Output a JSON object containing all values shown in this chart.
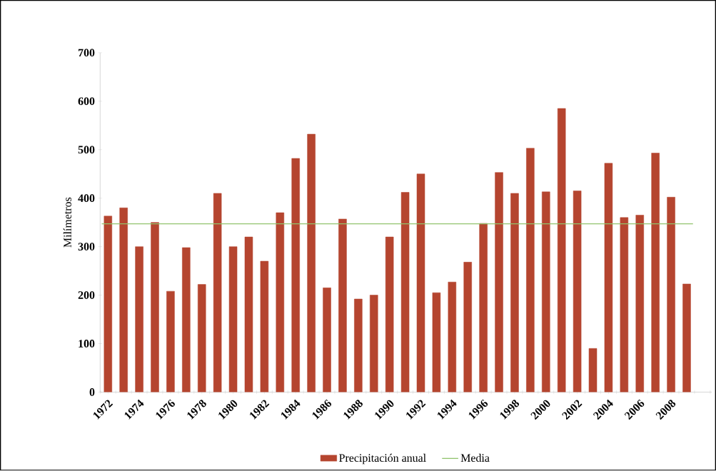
{
  "chart_data": {
    "type": "bar",
    "ylabel": "Milímetros",
    "categories": [
      "1972",
      null,
      "1974",
      null,
      "1976",
      null,
      "1978",
      null,
      "1980",
      null,
      "1982",
      null,
      "1984",
      null,
      "1986",
      null,
      "1988",
      null,
      "1990",
      null,
      "1992",
      null,
      "1994",
      null,
      "1996",
      null,
      "1998",
      null,
      "2000",
      null,
      "2002",
      null,
      "2004",
      null,
      "2006",
      null,
      "2008",
      null
    ],
    "series": [
      {
        "name": "Precipitación anual",
        "color": "#b5452f",
        "values": [
          363,
          380,
          300,
          350,
          208,
          298,
          222,
          410,
          300,
          320,
          270,
          370,
          482,
          532,
          215,
          357,
          192,
          200,
          320,
          412,
          450,
          205,
          227,
          268,
          348,
          453,
          410,
          503,
          413,
          585,
          415,
          90,
          472,
          360,
          365,
          493,
          402,
          223
        ]
      }
    ],
    "ref_lines": [
      {
        "axis": "y",
        "value": 347,
        "label": "Media",
        "color": "#92c46e"
      }
    ],
    "ylim": [
      0,
      700
    ],
    "yticks": [
      0,
      100,
      200,
      300,
      400,
      500,
      600,
      700
    ],
    "grid": false,
    "legend": "bottom"
  }
}
